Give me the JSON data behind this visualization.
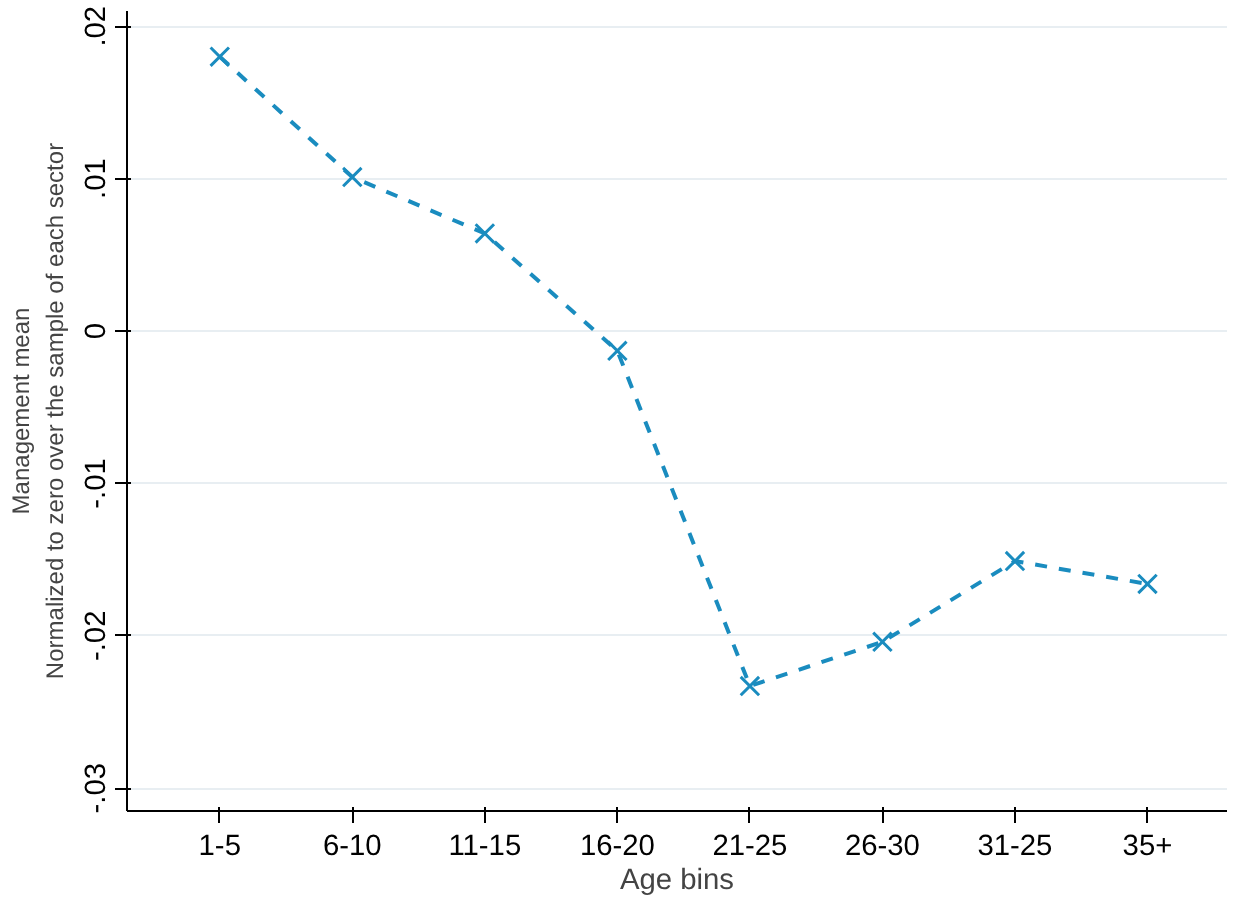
{
  "chart_data": {
    "type": "line",
    "xlabel": "Age bins",
    "ylabel": "Management mean\nNormalized to zero over the sample of each sector",
    "categories": [
      "1-5",
      "6-10",
      "11-15",
      "16-20",
      "21-25",
      "26-30",
      "31-25",
      "35+"
    ],
    "series": [
      {
        "color": "#1a8cbf",
        "values": [
          0.018,
          0.0101,
          0.0064,
          -0.0013,
          -0.0233,
          -0.0204,
          -0.0151,
          -0.0166
        ]
      }
    ],
    "ylim": [
      -0.0315,
      0.021
    ],
    "yticks": [
      {
        "value": -0.03,
        "label": "-.03"
      },
      {
        "value": -0.02,
        "label": "-.02"
      },
      {
        "value": -0.01,
        "label": "-.01"
      },
      0,
      {
        "value": 0.01,
        "label": ".01"
      },
      {
        "value": 0.02,
        "label": ".02"
      }
    ],
    "grid": "y",
    "marker": "cross",
    "line_style": "dashed"
  }
}
